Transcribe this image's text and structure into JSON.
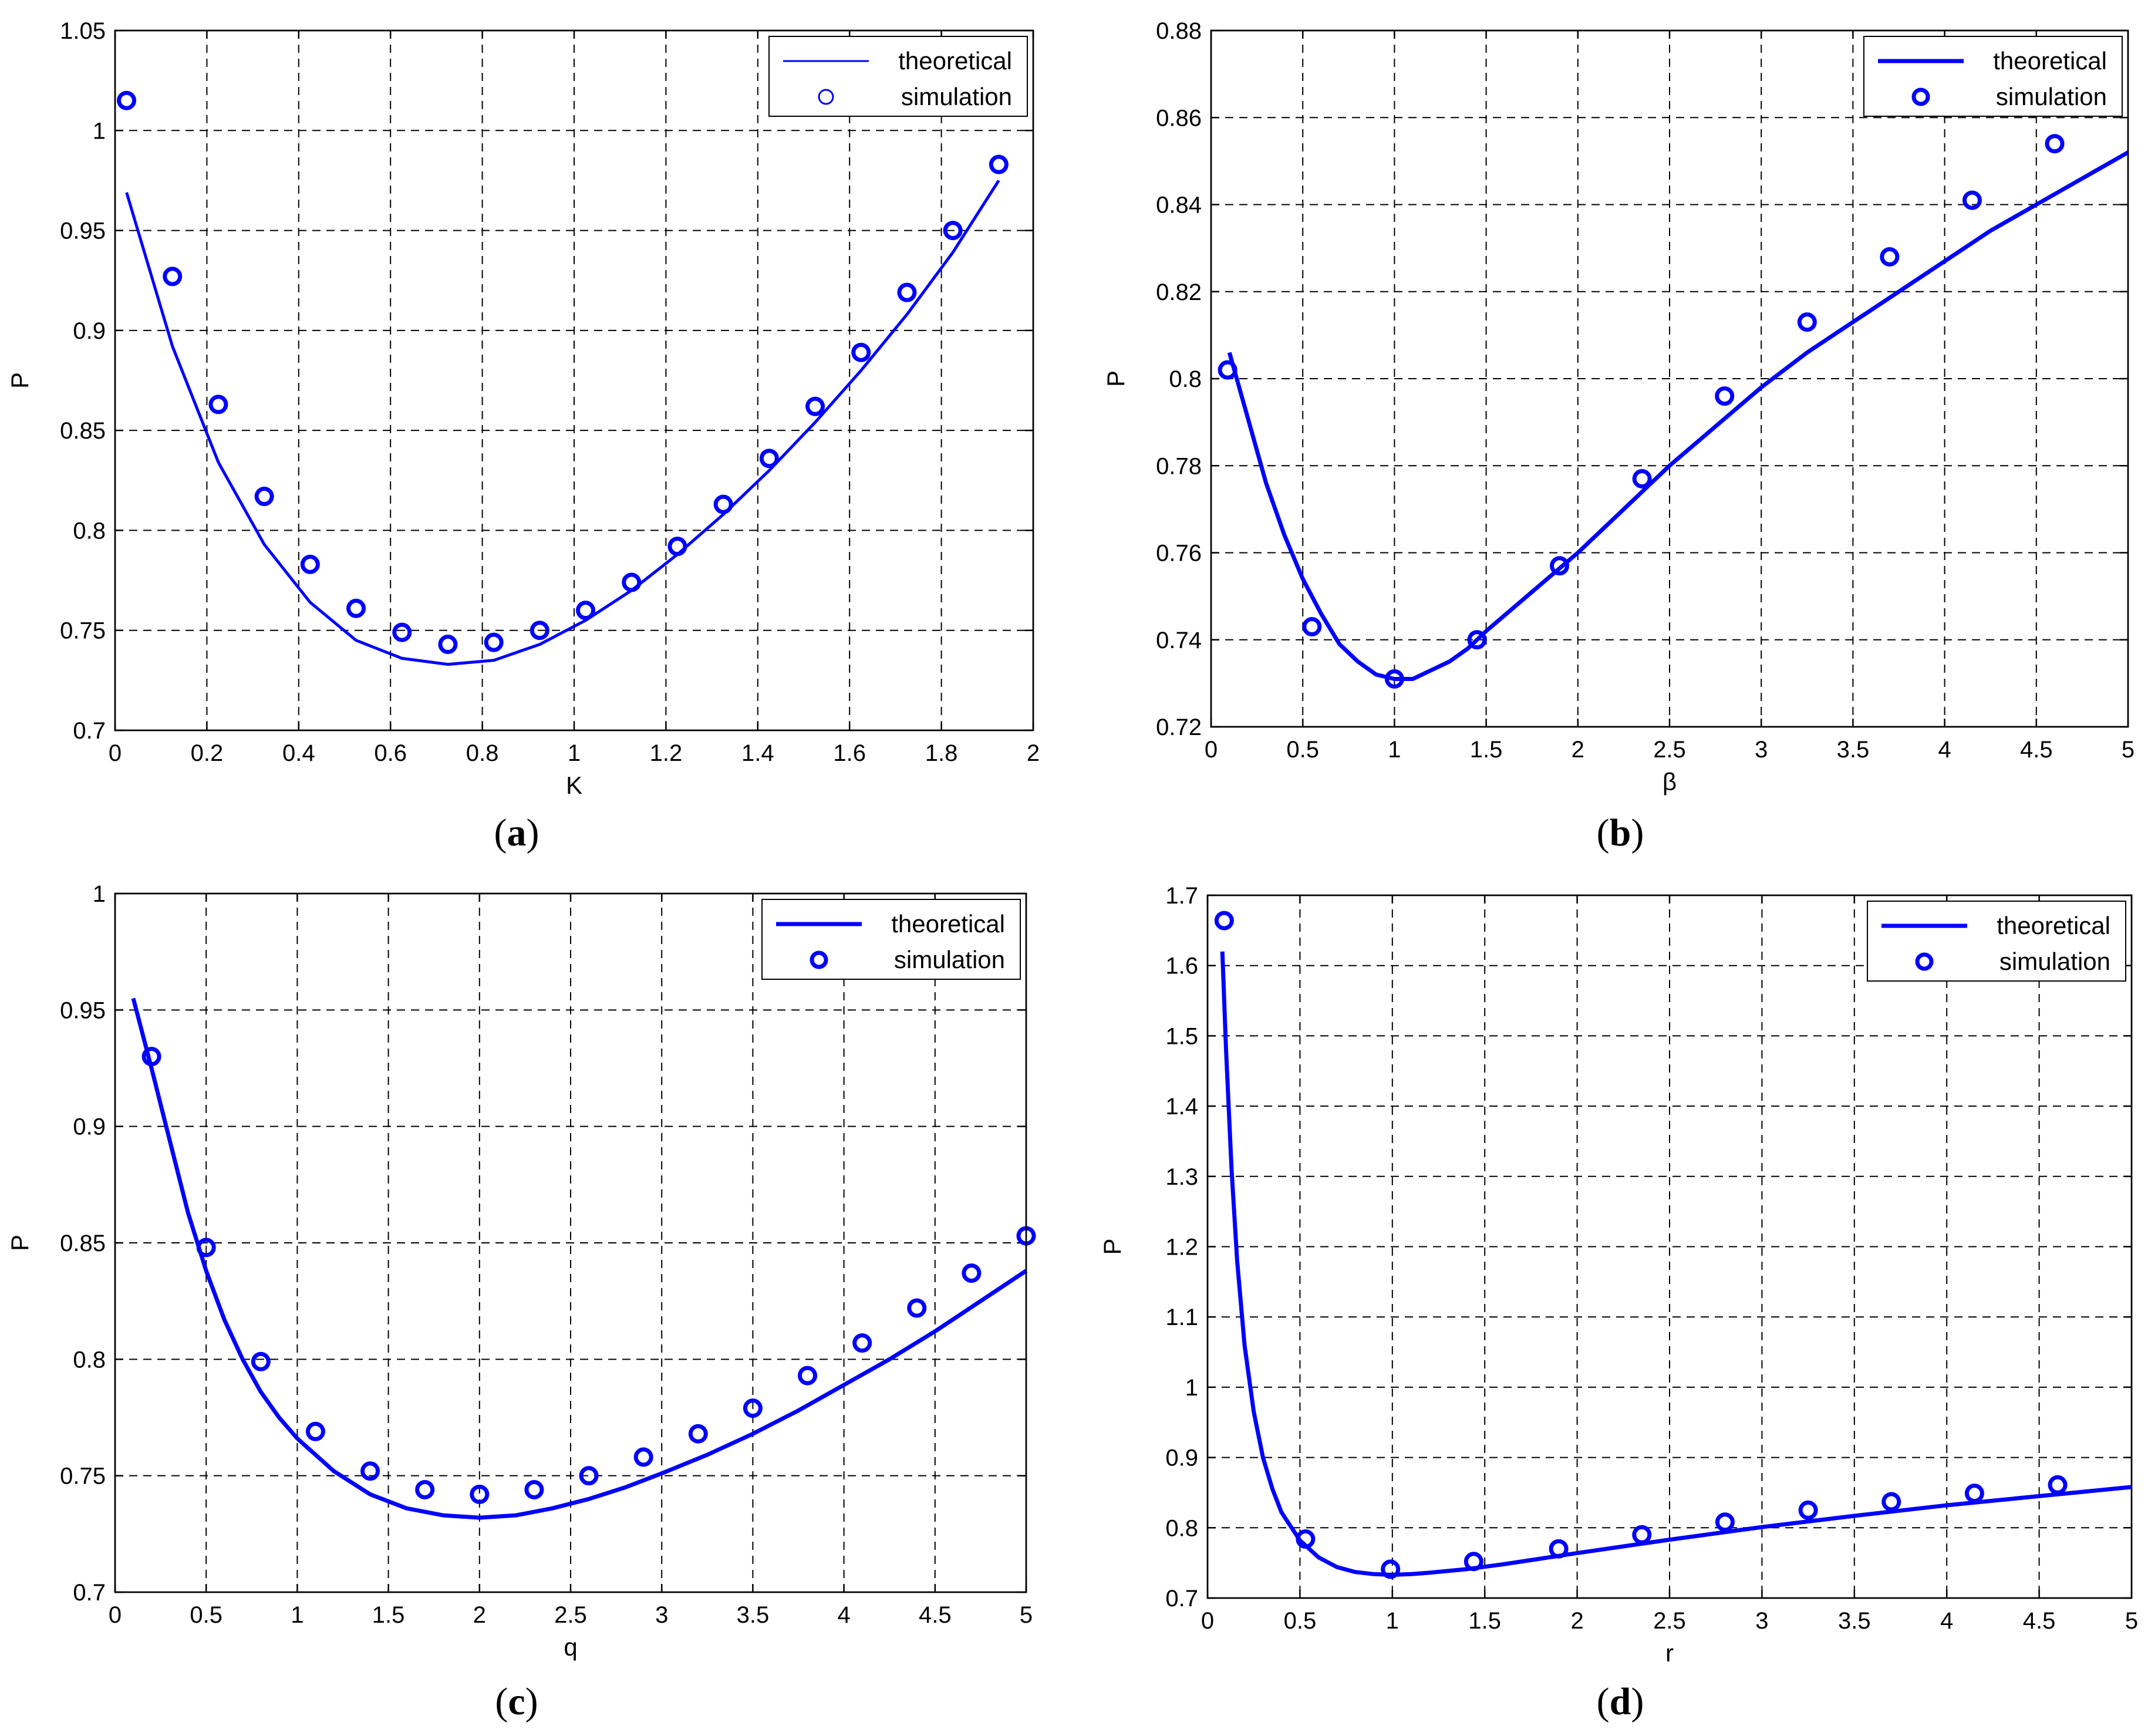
{
  "colors": {
    "series": "#0000ff",
    "axis": "#000000",
    "background": "#ffffff"
  },
  "chart_data": [
    {
      "id": "a",
      "type": "line",
      "caption_label": "a",
      "xlabel": "K",
      "ylabel": "P",
      "xlim": [
        0,
        2
      ],
      "ylim": [
        0.7,
        1.05
      ],
      "xticks": [
        0,
        0.2,
        0.4,
        0.6,
        0.8,
        1,
        1.2,
        1.4,
        1.6,
        1.8,
        2
      ],
      "yticks": [
        0.7,
        0.75,
        0.8,
        0.85,
        0.9,
        0.95,
        1,
        1.05
      ],
      "xtick_labels": [
        "0",
        "0.2",
        "0.4",
        "0.6",
        "0.8",
        "1",
        "1.2",
        "1.4",
        "1.6",
        "1.8",
        "2"
      ],
      "ytick_labels": [
        "0.7",
        "0.75",
        "0.8",
        "0.85",
        "0.9",
        "0.95",
        "1",
        "1.05"
      ],
      "grid": true,
      "legend": {
        "position": "top-right",
        "entries": [
          "theoretical",
          "simulation"
        ]
      },
      "series": [
        {
          "name": "theoretical",
          "style": "line-thin",
          "x": [
            0.025,
            0.125,
            0.225,
            0.325,
            0.425,
            0.525,
            0.625,
            0.725,
            0.825,
            0.925,
            1.025,
            1.125,
            1.225,
            1.325,
            1.425,
            1.525,
            1.625,
            1.725,
            1.825,
            1.925
          ],
          "y": [
            0.969,
            0.892,
            0.834,
            0.793,
            0.764,
            0.745,
            0.736,
            0.733,
            0.735,
            0.743,
            0.755,
            0.77,
            0.788,
            0.808,
            0.83,
            0.854,
            0.88,
            0.908,
            0.939,
            0.975
          ]
        },
        {
          "name": "simulation",
          "style": "markers",
          "x": [
            0.025,
            0.125,
            0.225,
            0.325,
            0.425,
            0.525,
            0.625,
            0.725,
            0.825,
            0.925,
            1.025,
            1.125,
            1.225,
            1.325,
            1.425,
            1.525,
            1.625,
            1.725,
            1.825,
            1.925
          ],
          "y": [
            1.015,
            0.927,
            0.863,
            0.817,
            0.783,
            0.761,
            0.749,
            0.743,
            0.744,
            0.75,
            0.76,
            0.774,
            0.792,
            0.813,
            0.836,
            0.862,
            0.889,
            0.919,
            0.95,
            0.983
          ]
        }
      ]
    },
    {
      "id": "b",
      "type": "line",
      "caption_label": "b",
      "xlabel": "β",
      "ylabel": "P",
      "xlim": [
        0,
        5
      ],
      "ylim": [
        0.72,
        0.88
      ],
      "xticks": [
        0,
        0.5,
        1,
        1.5,
        2,
        2.5,
        3,
        3.5,
        4,
        4.5,
        5
      ],
      "yticks": [
        0.72,
        0.74,
        0.76,
        0.78,
        0.8,
        0.82,
        0.84,
        0.86,
        0.88
      ],
      "xtick_labels": [
        "0",
        "0.5",
        "1",
        "1.5",
        "2",
        "2.5",
        "3",
        "3.5",
        "4",
        "4.5",
        "5"
      ],
      "ytick_labels": [
        "0.72",
        "0.74",
        "0.76",
        "0.78",
        "0.8",
        "0.82",
        "0.84",
        "0.86",
        "0.88"
      ],
      "grid": true,
      "legend": {
        "position": "top-right",
        "entries": [
          "theoretical",
          "simulation"
        ]
      },
      "series": [
        {
          "name": "theoretical",
          "style": "line",
          "x": [
            0.1,
            0.2,
            0.3,
            0.4,
            0.5,
            0.6,
            0.7,
            0.8,
            0.9,
            1.0,
            1.1,
            1.2,
            1.3,
            1.4,
            1.5,
            1.75,
            2.0,
            2.25,
            2.5,
            2.75,
            3.0,
            3.25,
            3.5,
            3.75,
            4.0,
            4.25,
            4.5,
            4.75,
            5.0
          ],
          "y": [
            0.806,
            0.791,
            0.776,
            0.764,
            0.754,
            0.746,
            0.739,
            0.735,
            0.732,
            0.731,
            0.731,
            0.733,
            0.735,
            0.738,
            0.742,
            0.751,
            0.76,
            0.77,
            0.78,
            0.789,
            0.798,
            0.806,
            0.813,
            0.82,
            0.827,
            0.834,
            0.84,
            0.846,
            0.852
          ]
        },
        {
          "name": "simulation",
          "style": "markers",
          "x": [
            0.09,
            0.55,
            1.0,
            1.45,
            1.9,
            2.35,
            2.8,
            3.25,
            3.7,
            4.15,
            4.6
          ],
          "y": [
            0.802,
            0.743,
            0.731,
            0.74,
            0.757,
            0.777,
            0.796,
            0.813,
            0.828,
            0.841,
            0.854
          ]
        }
      ]
    },
    {
      "id": "c",
      "type": "line",
      "caption_label": "c",
      "xlabel": "q",
      "ylabel": "P",
      "xlim": [
        0,
        5
      ],
      "ylim": [
        0.7,
        1
      ],
      "xticks": [
        0,
        0.5,
        1,
        1.5,
        2,
        2.5,
        3,
        3.5,
        4,
        4.5,
        5
      ],
      "yticks": [
        0.7,
        0.75,
        0.8,
        0.85,
        0.9,
        0.95,
        1
      ],
      "xtick_labels": [
        "0",
        "0.5",
        "1",
        "1.5",
        "2",
        "2.5",
        "3",
        "3.5",
        "4",
        "4.5",
        "5"
      ],
      "ytick_labels": [
        "0.7",
        "0.75",
        "0.8",
        "0.85",
        "0.9",
        "0.95",
        "1"
      ],
      "grid": true,
      "legend": {
        "position": "top-right",
        "entries": [
          "theoretical",
          "simulation"
        ]
      },
      "series": [
        {
          "name": "theoretical",
          "style": "line",
          "x": [
            0.1,
            0.2,
            0.3,
            0.4,
            0.5,
            0.6,
            0.7,
            0.8,
            0.9,
            1.0,
            1.2,
            1.4,
            1.6,
            1.8,
            2.0,
            2.2,
            2.4,
            2.6,
            2.8,
            3.0,
            3.25,
            3.5,
            3.75,
            4.0,
            4.25,
            4.5,
            4.75,
            5.0
          ],
          "y": [
            0.955,
            0.925,
            0.894,
            0.863,
            0.838,
            0.817,
            0.8,
            0.786,
            0.775,
            0.766,
            0.752,
            0.742,
            0.736,
            0.733,
            0.732,
            0.733,
            0.736,
            0.74,
            0.745,
            0.751,
            0.759,
            0.768,
            0.778,
            0.789,
            0.8,
            0.812,
            0.825,
            0.838
          ]
        },
        {
          "name": "simulation",
          "style": "markers",
          "x": [
            0.2,
            0.5,
            0.8,
            1.1,
            1.4,
            1.7,
            2.0,
            2.3,
            2.6,
            2.9,
            3.2,
            3.5,
            3.8,
            4.1,
            4.4,
            4.7,
            5.0
          ],
          "y": [
            0.93,
            0.848,
            0.799,
            0.769,
            0.752,
            0.744,
            0.742,
            0.744,
            0.75,
            0.758,
            0.768,
            0.779,
            0.793,
            0.807,
            0.822,
            0.837,
            0.853
          ]
        }
      ]
    },
    {
      "id": "d",
      "type": "line",
      "caption_label": "d",
      "xlabel": "r",
      "ylabel": "P",
      "xlim": [
        0,
        5
      ],
      "ylim": [
        0.7,
        1.7
      ],
      "xticks": [
        0,
        0.5,
        1,
        1.5,
        2,
        2.5,
        3,
        3.5,
        4,
        4.5,
        5
      ],
      "yticks": [
        0.7,
        0.8,
        0.9,
        1,
        1.1,
        1.2,
        1.3,
        1.4,
        1.5,
        1.6,
        1.7
      ],
      "xtick_labels": [
        "0",
        "0.5",
        "1",
        "1.5",
        "2",
        "2.5",
        "3",
        "3.5",
        "4",
        "4.5",
        "5"
      ],
      "ytick_labels": [
        "0.7",
        "0.8",
        "0.9",
        "1",
        "1.1",
        "1.2",
        "1.3",
        "1.4",
        "1.5",
        "1.6",
        "1.7"
      ],
      "grid": true,
      "legend": {
        "position": "top-right",
        "entries": [
          "theoretical",
          "simulation"
        ]
      },
      "series": [
        {
          "name": "theoretical",
          "style": "line",
          "x": [
            0.08,
            0.1,
            0.13,
            0.16,
            0.2,
            0.25,
            0.3,
            0.35,
            0.4,
            0.5,
            0.6,
            0.7,
            0.8,
            0.9,
            1.0,
            1.1,
            1.2,
            1.4,
            1.6,
            1.8,
            2.0,
            2.5,
            3.0,
            3.5,
            4.0,
            4.5,
            5.0
          ],
          "y": [
            1.62,
            1.48,
            1.31,
            1.18,
            1.06,
            0.965,
            0.9,
            0.856,
            0.822,
            0.782,
            0.758,
            0.744,
            0.737,
            0.734,
            0.733,
            0.734,
            0.736,
            0.741,
            0.748,
            0.756,
            0.764,
            0.783,
            0.801,
            0.817,
            0.832,
            0.845,
            0.858
          ]
        },
        {
          "name": "simulation",
          "style": "markers",
          "x": [
            0.09,
            0.53,
            0.99,
            1.44,
            1.9,
            2.35,
            2.8,
            3.25,
            3.7,
            4.15,
            4.6
          ],
          "y": [
            1.664,
            0.784,
            0.741,
            0.752,
            0.77,
            0.79,
            0.808,
            0.825,
            0.837,
            0.849,
            0.861
          ]
        }
      ]
    }
  ]
}
